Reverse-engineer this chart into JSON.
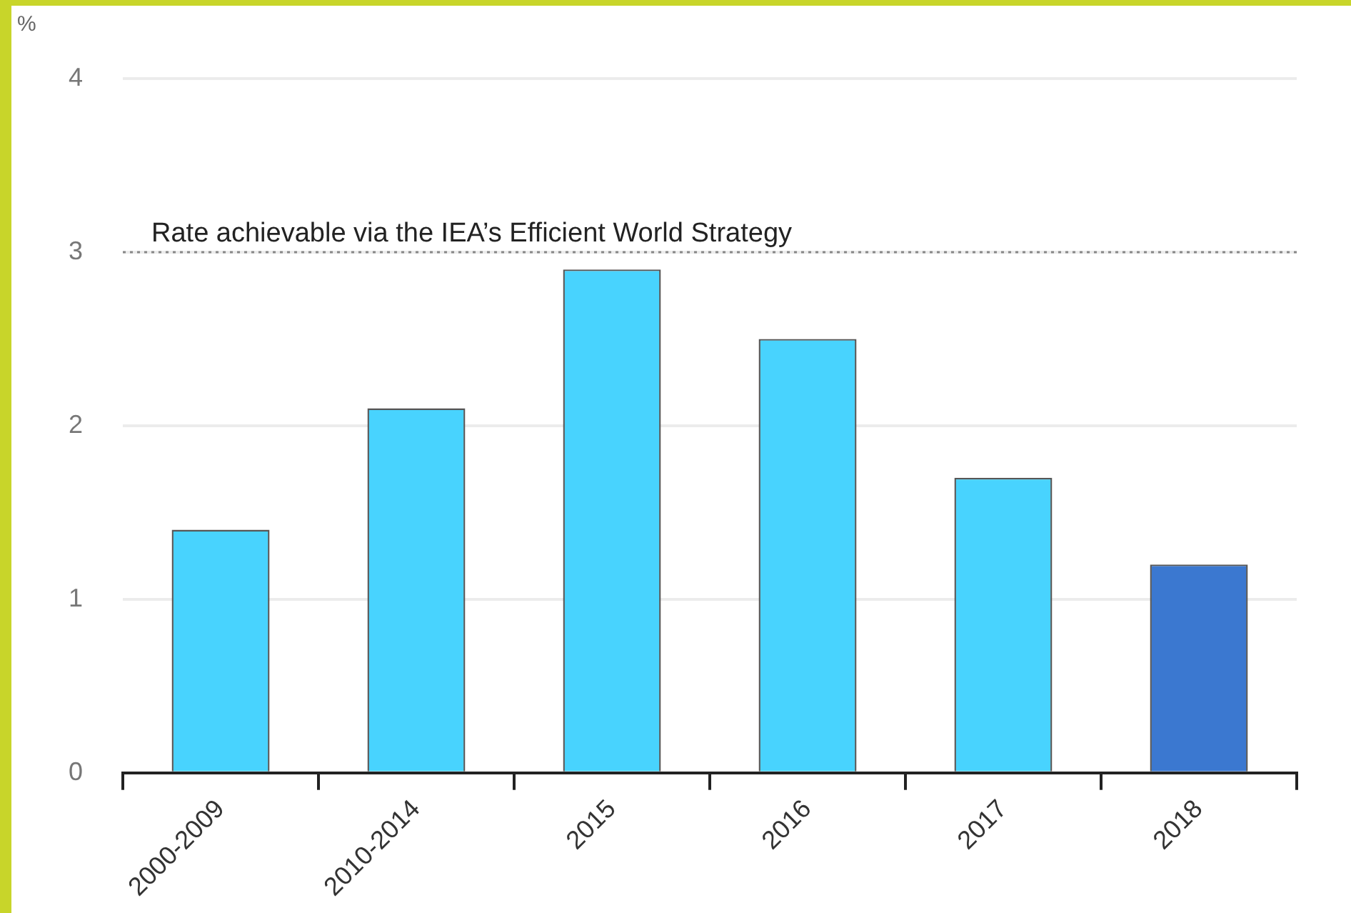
{
  "chart_data": {
    "type": "bar",
    "ylabel": "%",
    "categories": [
      "2000-2009",
      "2010-2014",
      "2015",
      "2016",
      "2017",
      "2018"
    ],
    "values": [
      1.4,
      2.1,
      2.9,
      2.5,
      1.7,
      1.2
    ],
    "colors": [
      "#48d3fe",
      "#48d3fe",
      "#48d3fe",
      "#48d3fe",
      "#48d3fe",
      "#3b78d0"
    ],
    "ylim": [
      0,
      4
    ],
    "yticks": [
      0,
      1,
      2,
      3,
      4
    ],
    "grid": "y",
    "ref_lines": [
      {
        "axis": "y",
        "value": 3,
        "label": "Rate achievable via the IEA’s Efficient World Strategy",
        "color": "#888888",
        "line_style": "dotted"
      }
    ]
  }
}
